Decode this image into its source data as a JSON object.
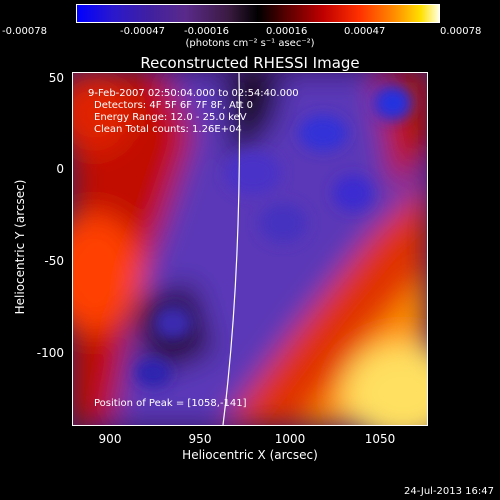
{
  "colorbar": {
    "ticks": [
      "-0.00078",
      "-0.00047",
      "-0.00016",
      "0.00016",
      "0.00047",
      "0.00078"
    ],
    "unit": "(photons cm⁻² s⁻¹ asec⁻²)"
  },
  "title": "Reconstructed RHESSI Image",
  "annotations": {
    "time_range": "9-Feb-2007 02:50:04.000 to 02:54:40.000",
    "detectors": "Detectors: 4F 5F 6F 7F 8F, Att 0",
    "energy": "Energy Range: 12.0 - 25.0 keV",
    "clean": "Clean     Total counts: 1.26E+04",
    "peak": "Position of Peak = [1058,-141]"
  },
  "axes": {
    "xlabel": "Heliocentric X (arcsec)",
    "ylabel": "Heliocentric Y (arcsec)",
    "xticks": [
      "900",
      "950",
      "1000",
      "1050"
    ],
    "yticks": [
      "50",
      "0",
      "-50",
      "-100"
    ]
  },
  "footer": "24-Jul-2013 16:47"
}
